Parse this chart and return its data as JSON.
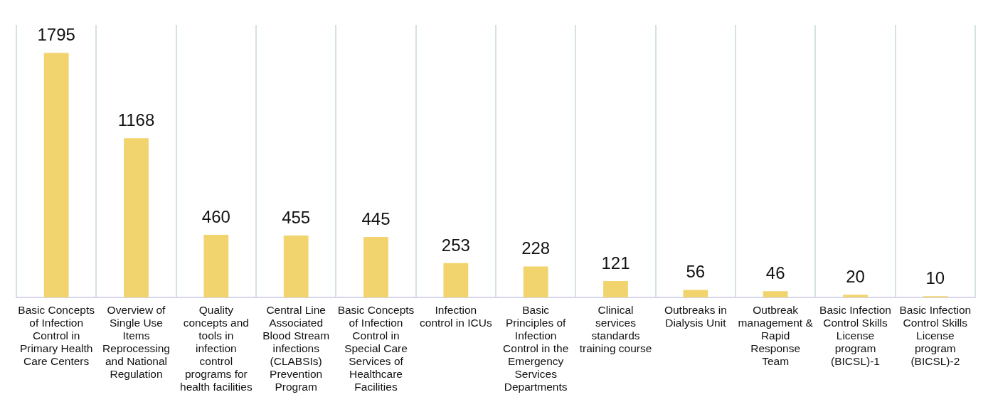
{
  "chart_data": {
    "type": "bar",
    "categories": [
      "Basic Concepts of Infection Control in Primary Health Care Centers",
      "Overview of Single Use Items Reprocessing and National Regulation",
      "Quality concepts and tools in infection control programs for health facilities",
      "Central Line Associated Blood Stream infections (CLABSIs) Prevention Program",
      "Basic Concepts of Infection Control in Special Care Services of Healthcare Facilities",
      "Infection control in ICUs",
      "Basic Principles of Infection Control in the Emergency Services Departments",
      "Clinical services standards training course",
      "Outbreaks in Dialysis Unit",
      "Outbreak management & Rapid Response Team",
      "Basic Infection Control Skills License program (BICSL)-1",
      "Basic Infection Control Skills License program (BICSL)-2"
    ],
    "values": [
      1795,
      1168,
      460,
      455,
      445,
      253,
      228,
      121,
      56,
      46,
      20,
      10
    ],
    "color": "#f2d46e",
    "data_labels": true,
    "grid": "x"
  }
}
